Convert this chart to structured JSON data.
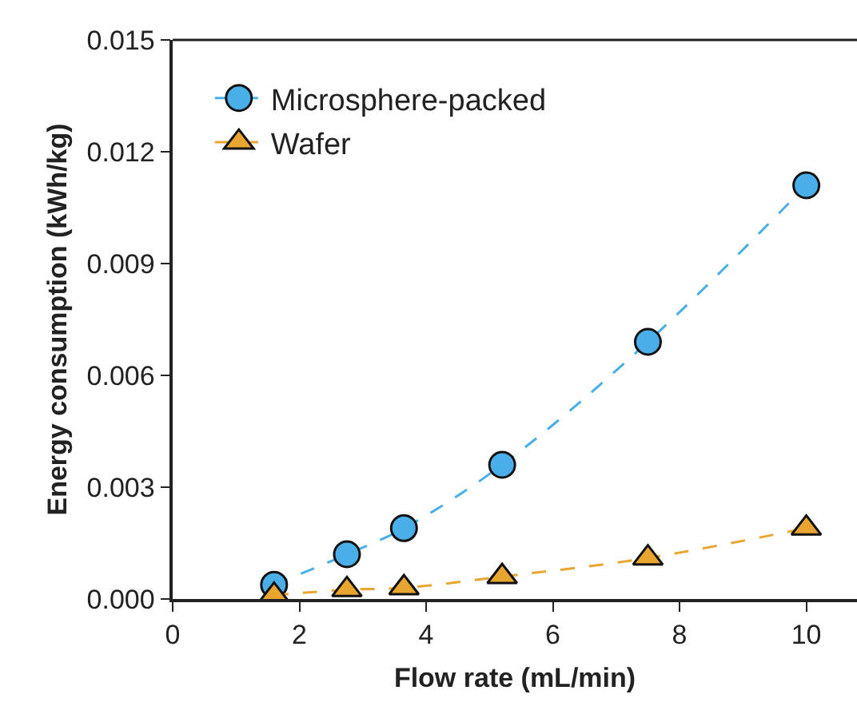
{
  "chart_data": {
    "type": "line",
    "xlabel": "Flow rate (mL/min)",
    "ylabel": "Energy consumption (kWh/kg)",
    "x": [
      1.6,
      2.75,
      3.65,
      5.2,
      7.5,
      10
    ],
    "series": [
      {
        "name": "Microsphere-packed",
        "color": "#4aafe8",
        "marker": "circle",
        "values": [
          0.00038,
          0.0012,
          0.0019,
          0.0036,
          0.0069,
          0.0111
        ]
      },
      {
        "name": "Wafer",
        "color": "#e8a530",
        "marker": "triangle",
        "values": [
          0.0001,
          0.00025,
          0.0003,
          0.0006,
          0.0011,
          0.0019
        ]
      }
    ],
    "line_style": "dashed",
    "xlim": [
      0,
      10.8
    ],
    "xticks": [
      0,
      2,
      4,
      6,
      8,
      10
    ],
    "ylim": [
      0,
      0.015
    ],
    "yticks": [
      {
        "value": 0,
        "label": "0.000"
      },
      {
        "value": 0.003,
        "label": "0.003"
      },
      {
        "value": 0.006,
        "label": "0.006"
      },
      {
        "value": 0.009,
        "label": "0.009"
      },
      {
        "value": 0.012,
        "label": "0.012"
      },
      {
        "value": 0.015,
        "label": "0.015"
      }
    ],
    "grid": false,
    "legend": "top left"
  }
}
